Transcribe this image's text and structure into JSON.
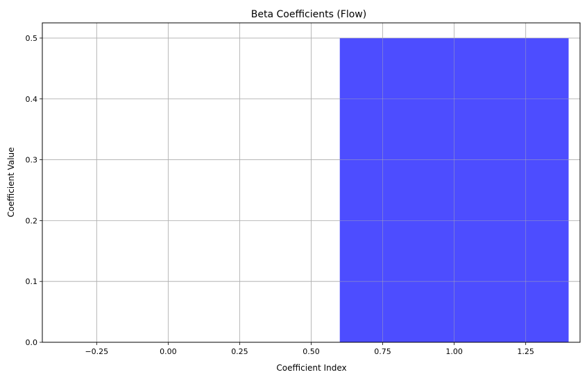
{
  "chart_data": {
    "type": "bar",
    "title": "Beta Coefficients (Flow)",
    "xlabel": "Coefficient Index",
    "ylabel": "Coefficient Value",
    "bars": [
      {
        "x": 0,
        "value": 0.0
      },
      {
        "x": 1,
        "value": 0.5
      }
    ],
    "bar_width": 0.8,
    "xlim": [
      -0.44,
      1.44
    ],
    "ylim": [
      0,
      0.525
    ],
    "xticks": [
      -0.25,
      0.0,
      0.25,
      0.5,
      0.75,
      1.0,
      1.25
    ],
    "xtick_labels": [
      "−0.25",
      "0.00",
      "0.25",
      "0.50",
      "0.75",
      "1.00",
      "1.25"
    ],
    "yticks": [
      0.0,
      0.1,
      0.2,
      0.3,
      0.4,
      0.5
    ],
    "ytick_labels": [
      "0.0",
      "0.1",
      "0.2",
      "0.3",
      "0.4",
      "0.5"
    ],
    "grid": true,
    "bar_color": "#4d4dff",
    "grid_color": "#b0b0b0"
  }
}
